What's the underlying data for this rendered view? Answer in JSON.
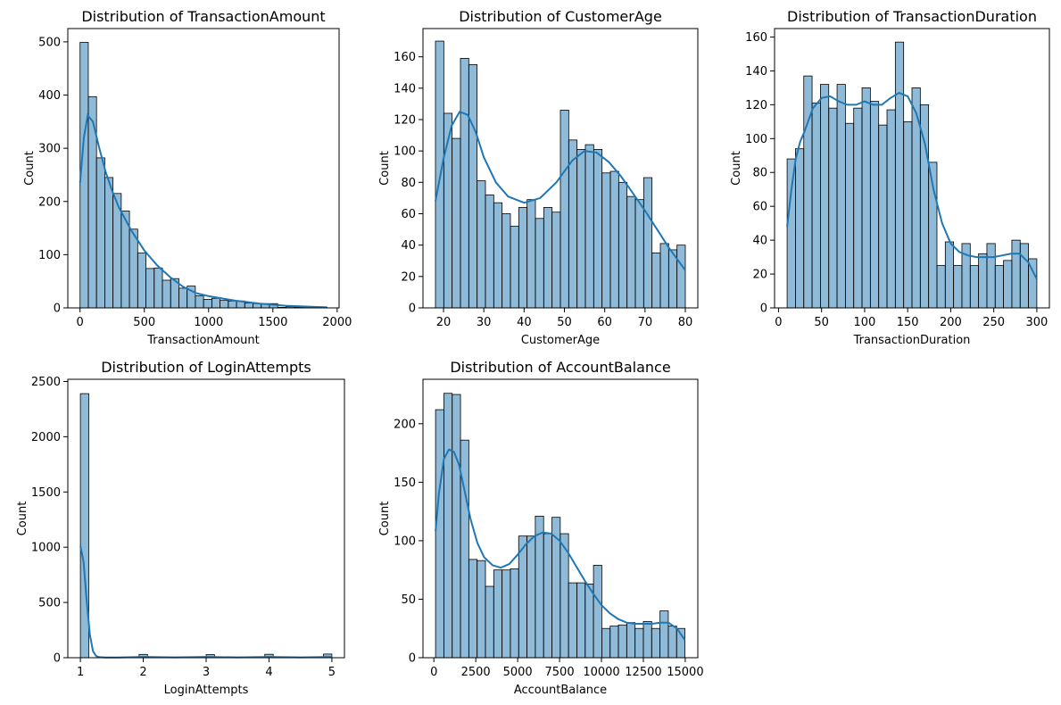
{
  "chart_data": [
    {
      "type": "bar",
      "title": "Distribution of TransactionAmount",
      "xlabel": "TransactionAmount",
      "ylabel": "Count",
      "xlim": [
        -95,
        2015
      ],
      "ylim": [
        0,
        525
      ],
      "xticks": [
        0,
        500,
        1000,
        1500,
        2000
      ],
      "yticks": [
        0,
        100,
        200,
        300,
        400,
        500
      ],
      "bin_edges": [
        0.26,
        64.3,
        128.3,
        192.4,
        256.4,
        320.5,
        384.5,
        448.6,
        512.6,
        576.7,
        640.7,
        704.8,
        768.8,
        832.9,
        896.9,
        961.0,
        1025.0,
        1089.1,
        1153.1,
        1217.2,
        1281.2,
        1345.3,
        1409.3,
        1473.4,
        1537.4,
        1601.5,
        1665.5,
        1729.6,
        1793.6,
        1857.7,
        1921.7
      ],
      "values": [
        499,
        397,
        282,
        245,
        215,
        182,
        148,
        103,
        74,
        75,
        52,
        55,
        37,
        41,
        23,
        16,
        18,
        14,
        13,
        13,
        9,
        8,
        8,
        8,
        1,
        2,
        1,
        1,
        0,
        1
      ],
      "kde": {
        "x": [
          0,
          30,
          60,
          100,
          150,
          200,
          250,
          300,
          400,
          500,
          600,
          700,
          800,
          900,
          1000,
          1200,
          1400,
          1600,
          1800,
          1921.7
        ],
        "y": [
          235,
          320,
          362,
          350,
          300,
          255,
          220,
          190,
          145,
          108,
          80,
          58,
          40,
          28,
          22,
          14,
          8,
          4,
          2,
          1
        ]
      }
    },
    {
      "type": "bar",
      "title": "Distribution of CustomerAge",
      "xlabel": "CustomerAge",
      "ylabel": "Count",
      "xlim": [
        14.9,
        83.1
      ],
      "ylim": [
        0,
        178
      ],
      "xticks": [
        20,
        30,
        40,
        50,
        60,
        70,
        80
      ],
      "yticks": [
        0,
        20,
        40,
        60,
        80,
        100,
        120,
        140,
        160
      ],
      "bin_edges": [
        18.0,
        20.07,
        22.13,
        24.2,
        26.27,
        28.33,
        30.4,
        32.47,
        34.53,
        36.6,
        38.67,
        40.73,
        42.8,
        44.87,
        46.93,
        49.0,
        51.07,
        53.13,
        55.2,
        57.27,
        59.33,
        61.4,
        63.47,
        65.53,
        67.6,
        69.67,
        71.73,
        73.8,
        75.87,
        77.93,
        80.0
      ],
      "values": [
        170,
        124,
        108,
        159,
        155,
        81,
        72,
        67,
        60,
        52,
        64,
        69,
        57,
        64,
        61,
        126,
        107,
        101,
        104,
        101,
        86,
        87,
        80,
        71,
        69,
        83,
        35,
        41,
        37,
        40
      ],
      "kde": {
        "x": [
          18,
          20,
          22,
          24,
          26,
          28,
          30,
          33,
          36,
          40,
          44,
          48,
          52,
          55,
          58,
          61,
          64,
          67,
          70,
          73,
          76,
          80
        ],
        "y": [
          68,
          95,
          116,
          125,
          123,
          112,
          96,
          80,
          71,
          67,
          70,
          80,
          94,
          100,
          99,
          93,
          84,
          73,
          62,
          50,
          38,
          24
        ]
      }
    },
    {
      "type": "bar",
      "title": "Distribution of TransactionDuration",
      "xlabel": "TransactionDuration",
      "ylabel": "Count",
      "xlim": [
        -4.6,
        314.6
      ],
      "ylim": [
        0,
        165
      ],
      "xticks": [
        0,
        50,
        100,
        150,
        200,
        250,
        300
      ],
      "yticks": [
        0,
        20,
        40,
        60,
        80,
        100,
        120,
        140,
        160
      ],
      "bin_edges": [
        10,
        19.67,
        29.33,
        39.0,
        48.67,
        58.33,
        68.0,
        77.67,
        87.33,
        97.0,
        106.67,
        116.33,
        126.0,
        135.67,
        145.33,
        155.0,
        164.67,
        174.33,
        184.0,
        193.67,
        203.33,
        213.0,
        222.67,
        232.33,
        242.0,
        251.67,
        261.33,
        271.0,
        280.67,
        290.33,
        300.0
      ],
      "values": [
        88,
        94,
        137,
        121,
        132,
        118,
        132,
        109,
        118,
        130,
        122,
        108,
        117,
        157,
        110,
        130,
        120,
        86,
        25,
        39,
        25,
        38,
        25,
        32,
        38,
        25,
        28,
        40,
        38,
        29
      ],
      "kde": {
        "x": [
          10,
          15,
          20,
          25,
          30,
          40,
          50,
          60,
          70,
          80,
          90,
          100,
          110,
          120,
          130,
          140,
          150,
          160,
          170,
          180,
          190,
          200,
          210,
          220,
          230,
          240,
          250,
          260,
          270,
          280,
          290,
          300
        ],
        "y": [
          48,
          70,
          88,
          98,
          104,
          118,
          124,
          125,
          122,
          120,
          120,
          122,
          120,
          120,
          124,
          127,
          125,
          115,
          97,
          70,
          50,
          38,
          33,
          31,
          30,
          30,
          30,
          31,
          32,
          32,
          27,
          17
        ]
      }
    },
    {
      "type": "bar",
      "title": "Distribution of LoginAttempts",
      "xlabel": "LoginAttempts",
      "ylabel": "Count",
      "xlim": [
        0.8,
        5.2
      ],
      "ylim": [
        0,
        2520
      ],
      "xticks": [
        1,
        2,
        3,
        4,
        5
      ],
      "yticks": [
        0,
        500,
        1000,
        1500,
        2000,
        2500
      ],
      "bin_edges": [
        1.0,
        1.133,
        1.267,
        1.4,
        1.533,
        1.667,
        1.8,
        1.933,
        2.067,
        2.2,
        2.333,
        2.467,
        2.6,
        2.733,
        2.867,
        3.0,
        3.133,
        3.267,
        3.4,
        3.533,
        3.667,
        3.8,
        3.933,
        4.067,
        4.2,
        4.333,
        4.467,
        4.6,
        4.733,
        4.867,
        5.0
      ],
      "values": [
        2390,
        0,
        0,
        0,
        0,
        0,
        0,
        30,
        0,
        0,
        0,
        0,
        0,
        0,
        0,
        28,
        0,
        0,
        0,
        0,
        0,
        0,
        31,
        0,
        0,
        0,
        0,
        0,
        0,
        33
      ],
      "kde": {
        "x": [
          1.0,
          1.05,
          1.1,
          1.15,
          1.2,
          1.25,
          1.3,
          1.4,
          1.6,
          2.0,
          2.5,
          3.0,
          3.5,
          4.0,
          4.5,
          5.0
        ],
        "y": [
          1010,
          870,
          520,
          210,
          60,
          15,
          5,
          2,
          2,
          7,
          3,
          7,
          3,
          7,
          3,
          7
        ]
      }
    },
    {
      "type": "bar",
      "title": "Distribution of AccountBalance",
      "xlabel": "AccountBalance",
      "ylabel": "Count",
      "xlim": [
        -650,
        15750
      ],
      "ylim": [
        0,
        238
      ],
      "xticks": [
        0,
        2500,
        5000,
        7500,
        10000,
        12500,
        15000
      ],
      "xtick_labels": [
        "0",
        "2500",
        "5000",
        "7500",
        "10000",
        "12500",
        "15000"
      ],
      "yticks": [
        0,
        50,
        100,
        150,
        200
      ],
      "bin_edges": [
        101,
        597,
        1093,
        1589,
        2085,
        2581,
        3077,
        3573,
        4069,
        4565,
        5061,
        5557,
        6053,
        6549,
        7045,
        7541,
        8037,
        8533,
        9029,
        9525,
        10021,
        10517,
        11013,
        11509,
        12005,
        12501,
        12997,
        13493,
        13989,
        14485,
        14981
      ],
      "values": [
        212,
        226,
        225,
        186,
        84,
        83,
        61,
        75,
        75,
        76,
        104,
        104,
        121,
        106,
        120,
        106,
        64,
        64,
        63,
        79,
        25,
        27,
        28,
        30,
        25,
        31,
        25,
        40,
        27,
        25
      ],
      "kde": {
        "x": [
          101,
          300,
          600,
          900,
          1200,
          1500,
          1800,
          2200,
          2600,
          3000,
          3500,
          4000,
          4500,
          5000,
          5500,
          6000,
          6500,
          7000,
          7500,
          8000,
          8500,
          9000,
          9500,
          10000,
          10500,
          11000,
          11500,
          12000,
          12500,
          13000,
          13500,
          14000,
          14500,
          14981
        ],
        "y": [
          108,
          140,
          170,
          178,
          176,
          165,
          145,
          118,
          98,
          86,
          79,
          77,
          80,
          88,
          97,
          104,
          107,
          106,
          100,
          90,
          78,
          66,
          55,
          45,
          38,
          33,
          30,
          29,
          29,
          29,
          30,
          30,
          25,
          15
        ]
      }
    }
  ]
}
